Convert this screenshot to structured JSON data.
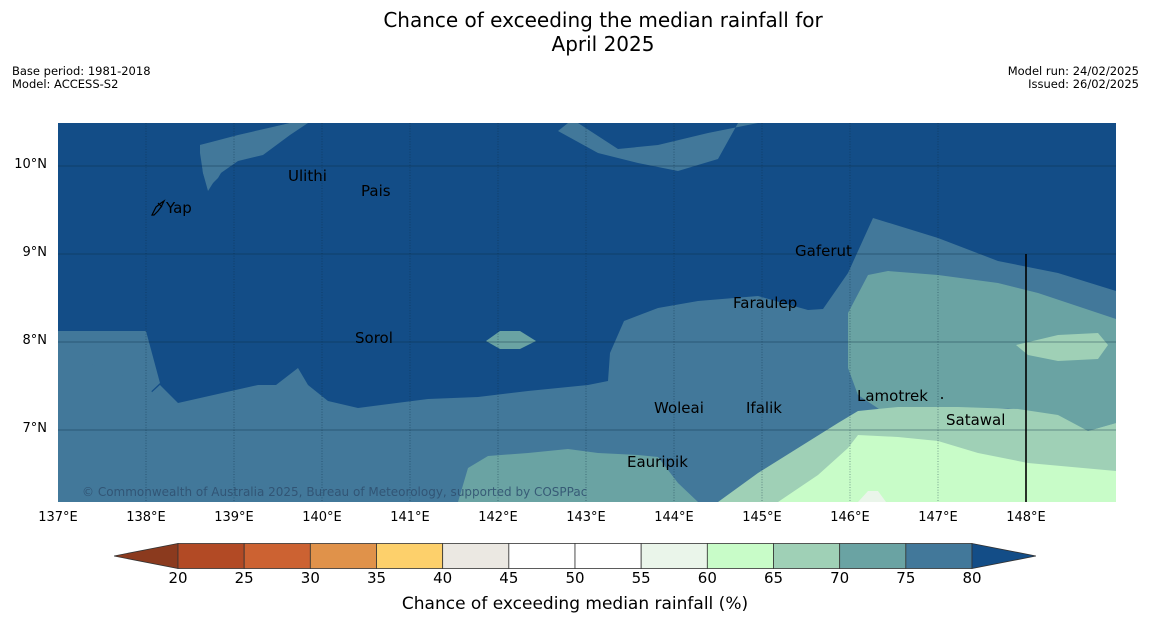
{
  "title_line1": "Chance of exceeding the median rainfall for",
  "title_line2": "April 2025",
  "meta": {
    "base_period": "Base period: 1981-2018",
    "model": "Model: ACCESS-S2",
    "model_run": "Model run: 24/02/2025",
    "issued": "Issued: 26/02/2025"
  },
  "y_axis": [
    "10°N",
    "9°N",
    "8°N",
    "7°N"
  ],
  "x_axis": [
    "137°E",
    "138°E",
    "139°E",
    "140°E",
    "141°E",
    "142°E",
    "143°E",
    "144°E",
    "145°E",
    "146°E",
    "147°E",
    "148°E"
  ],
  "places": [
    "Yap",
    "Ulithi",
    "Pais",
    "Gaferut",
    "Faraulep",
    "Sorol",
    "Lamotrek",
    "Woleai",
    "Ifalik",
    "Satawal",
    "Eauripik"
  ],
  "copyright": "© Commonwealth of Australia 2025, Bureau of Meteorology, supported by COSPPac",
  "colorbar": {
    "ticks": [
      "20",
      "25",
      "30",
      "35",
      "40",
      "45",
      "50",
      "55",
      "60",
      "65",
      "70",
      "75",
      "80"
    ],
    "colors": [
      "#8b3a1e",
      "#b24a25",
      "#cc6232",
      "#e0924a",
      "#fdd06b",
      "#ebe8e2",
      "#ffffff",
      "#ffffff",
      "#eaf5ea",
      "#c8fcc8",
      "#9fd0b6",
      "#6aa3a3",
      "#42789a",
      "#134d87"
    ],
    "label": "Chance of exceeding median rainfall (%)"
  }
}
